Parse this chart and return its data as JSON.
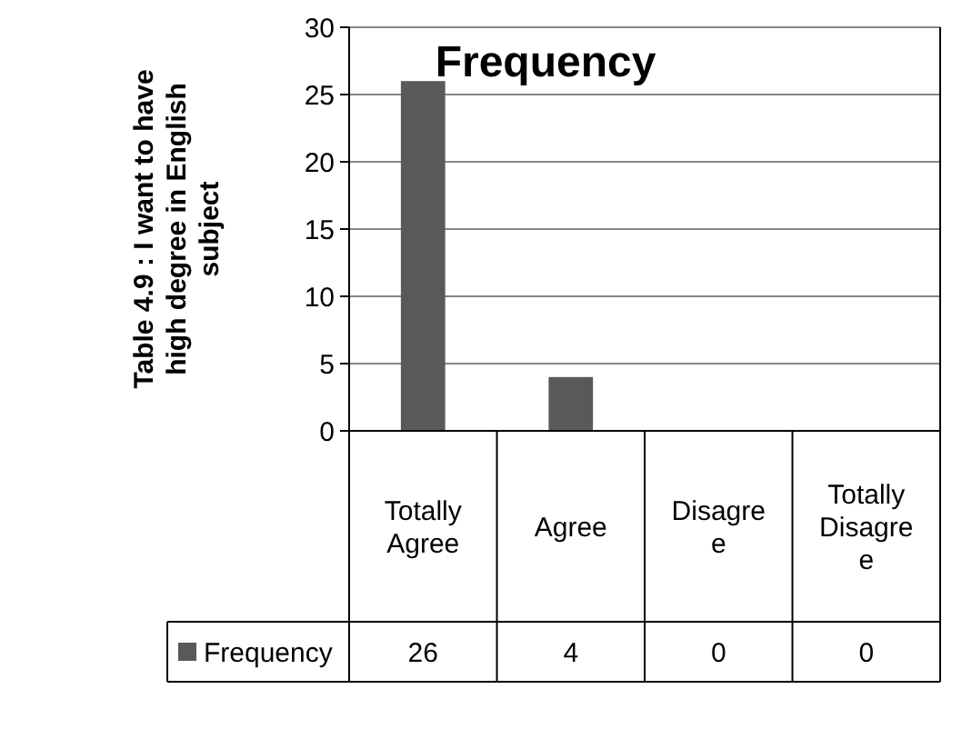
{
  "chart_data": {
    "type": "bar",
    "title": "Frequency",
    "ylabel": "Table 4.9 : I want to have high degree in English subject",
    "categories": [
      "Totally Agree",
      "Agree",
      "Disagree",
      "Totally Disagree"
    ],
    "series": [
      {
        "name": "Frequency",
        "color": "#595959",
        "values": [
          26,
          4,
          0,
          0
        ]
      }
    ],
    "ylim": [
      0,
      30
    ],
    "yticks": [
      0,
      5,
      10,
      15,
      20,
      25,
      30
    ],
    "grid": "y",
    "data_labels": true,
    "legend": "bottom"
  }
}
